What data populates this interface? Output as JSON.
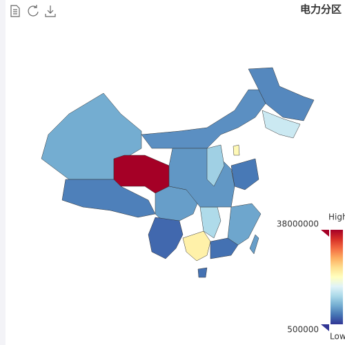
{
  "chart_data": {
    "type": "map",
    "title": "电力分区",
    "values": [
      8000000,
      5000000,
      38000000,
      6000000,
      5500000,
      14000000,
      7000000,
      3500000,
      21000000,
      12000000,
      4000000,
      7500000,
      4500000,
      6500000,
      11000000,
      20000000,
      4000000,
      7000000
    ],
    "visual_map": {
      "min": 500000,
      "max": 38000000,
      "min_label": "500000",
      "max_label": "38000000",
      "high_text": "High",
      "low_text": "Low",
      "colors": [
        "#313695",
        "#4575b4",
        "#74add1",
        "#abd9e9",
        "#e0f3f8",
        "#ffffbf",
        "#fee090",
        "#fdae61",
        "#f46d43",
        "#d73027",
        "#a50026"
      ]
    }
  }
}
